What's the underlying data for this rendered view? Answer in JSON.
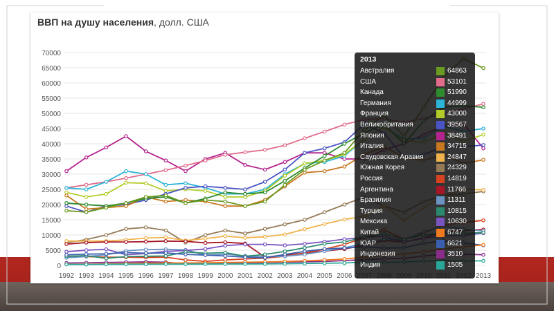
{
  "chart_data": {
    "type": "line",
    "title": "ВВП на душу населения",
    "title_unit": ", долл. США",
    "x": [
      "1992",
      "1993",
      "1994",
      "1995",
      "1996",
      "1997",
      "1998",
      "1999",
      "2000",
      "2001",
      "2002",
      "2003",
      "2004",
      "2005",
      "2006",
      "2007",
      "2008",
      "2009",
      "2010",
      "2011",
      "2012",
      "2013"
    ],
    "ylim": [
      0,
      70000
    ],
    "yticks": [
      "0",
      "5000",
      "10000",
      "15000",
      "20000",
      "25000",
      "30000",
      "35000",
      "40000",
      "45000",
      "50000",
      "55000",
      "60000",
      "65000",
      "70000"
    ],
    "grid": true,
    "tooltip": {
      "year": "2013",
      "rows": [
        {
          "name": "Австралия",
          "value": "64863",
          "color": "#6a9a1f"
        },
        {
          "name": "США",
          "value": "53101",
          "color": "#e06b8b"
        },
        {
          "name": "Канада",
          "value": "51990",
          "color": "#2e8b2e"
        },
        {
          "name": "Германия",
          "value": "44999",
          "color": "#2cb5d8"
        },
        {
          "name": "Франция",
          "value": "43000",
          "color": "#b3cc2a"
        },
        {
          "name": "Великобритания",
          "value": "39567",
          "color": "#4a54c4"
        },
        {
          "name": "Япония",
          "value": "38491",
          "color": "#b4238e"
        },
        {
          "name": "Италия",
          "value": "34715",
          "color": "#c8781e"
        },
        {
          "name": "Саудовская Аравия",
          "value": "24847",
          "color": "#f0b24a"
        },
        {
          "name": "Южная Корея",
          "value": "24329",
          "color": "#957a55"
        },
        {
          "name": "Россия",
          "value": "14819",
          "color": "#d8431f"
        },
        {
          "name": "Аргентина",
          "value": "11766",
          "color": "#a61626"
        },
        {
          "name": "Бразилия",
          "value": "11311",
          "color": "#6b93c4"
        },
        {
          "name": "Турция",
          "value": "10815",
          "color": "#2b8a6e"
        },
        {
          "name": "Мексика",
          "value": "10630",
          "color": "#7a55c0"
        },
        {
          "name": "Китай",
          "value": "6747",
          "color": "#f07a1e"
        },
        {
          "name": "ЮАР",
          "value": "6621",
          "color": "#3a5fb0"
        },
        {
          "name": "Индонезия",
          "value": "3510",
          "color": "#8a2c8a"
        },
        {
          "name": "Индия",
          "value": "1505",
          "color": "#29a89a"
        }
      ]
    },
    "series": [
      {
        "color": "#b4238e",
        "values": [
          31000,
          35500,
          38800,
          42500,
          37500,
          34500,
          31000,
          35000,
          37000,
          33000,
          31500,
          34000,
          37000,
          37000,
          35000,
          35000,
          38000,
          40000,
          43000,
          46000,
          46500,
          38491
        ]
      },
      {
        "color": "#e06b8b",
        "values": [
          25500,
          26500,
          27500,
          28700,
          30000,
          31300,
          32800,
          34500,
          36400,
          37200,
          38000,
          39500,
          41800,
          44000,
          46300,
          48000,
          48300,
          47000,
          48400,
          49800,
          51500,
          53101
        ]
      },
      {
        "color": "#2cb5d8",
        "values": [
          25500,
          25000,
          27500,
          31000,
          30000,
          26500,
          27000,
          25500,
          23500,
          23500,
          25000,
          30000,
          33500,
          34000,
          36000,
          41500,
          45500,
          41500,
          41800,
          45800,
          44000,
          44999
        ]
      },
      {
        "color": "#b3cc2a",
        "values": [
          24000,
          22500,
          23500,
          27200,
          27000,
          24500,
          25000,
          24500,
          22500,
          22500,
          24500,
          29500,
          33500,
          34500,
          36500,
          41500,
          45500,
          41000,
          40500,
          43500,
          40800,
          43000
        ]
      },
      {
        "color": "#4a54c4",
        "values": [
          19500,
          17500,
          19500,
          20000,
          21500,
          23500,
          25500,
          26000,
          25500,
          25000,
          27500,
          31500,
          37000,
          38500,
          40500,
          46500,
          43500,
          35500,
          36500,
          39000,
          39000,
          39567
        ]
      },
      {
        "color": "#c8781e",
        "values": [
          23000,
          18500,
          19000,
          19500,
          22500,
          21000,
          21500,
          21000,
          19500,
          19500,
          21500,
          26000,
          30500,
          31000,
          32500,
          36500,
          39000,
          35500,
          34500,
          36500,
          33500,
          34715
        ]
      },
      {
        "color": "#2e8b2e",
        "values": [
          20500,
          20000,
          19500,
          20500,
          22000,
          22500,
          20500,
          22000,
          24000,
          23500,
          24000,
          27800,
          32000,
          36000,
          40000,
          43500,
          46500,
          40000,
          47500,
          52000,
          52500,
          51990
        ]
      },
      {
        "color": "#6a9a1f",
        "values": [
          18000,
          17500,
          19000,
          20500,
          22500,
          23000,
          20500,
          21500,
          21000,
          19500,
          21000,
          26500,
          31500,
          34500,
          37000,
          44500,
          49500,
          42500,
          52000,
          62000,
          68000,
          64863
        ]
      },
      {
        "color": "#957a55",
        "values": [
          7500,
          8500,
          10000,
          12000,
          12500,
          11500,
          7500,
          10000,
          11500,
          10500,
          12000,
          13500,
          15000,
          17500,
          20000,
          22500,
          19500,
          17500,
          21000,
          23000,
          23500,
          24329
        ]
      },
      {
        "color": "#f0b24a",
        "values": [
          8000,
          8000,
          8000,
          8400,
          9000,
          9200,
          8200,
          8800,
          9600,
          9100,
          9400,
          10200,
          11900,
          13600,
          15100,
          16200,
          19500,
          14800,
          19000,
          23000,
          25000,
          24847
        ]
      },
      {
        "color": "#a61626",
        "values": [
          7000,
          7500,
          7700,
          7700,
          7800,
          8000,
          7900,
          7400,
          7600,
          7200,
          2700,
          3400,
          4000,
          4700,
          5400,
          6600,
          8200,
          7700,
          9100,
          10900,
          11500,
          11766
        ]
      },
      {
        "color": "#d8431f",
        "values": [
          3000,
          2900,
          2700,
          2700,
          2600,
          2700,
          1800,
          1300,
          1800,
          2100,
          2400,
          3000,
          4100,
          5300,
          6900,
          9100,
          11700,
          8600,
          10700,
          13300,
          14100,
          14819
        ]
      },
      {
        "color": "#6b93c4",
        "values": [
          2500,
          2900,
          3500,
          4800,
          5200,
          5300,
          5100,
          3400,
          3700,
          3100,
          2800,
          3000,
          3600,
          4700,
          5800,
          7200,
          8600,
          8400,
          11100,
          13000,
          11900,
          11311
        ]
      },
      {
        "color": "#7a55c0",
        "values": [
          4500,
          5000,
          5300,
          3500,
          3900,
          4600,
          4900,
          5400,
          6500,
          6900,
          6900,
          6600,
          7100,
          7800,
          8600,
          9200,
          9600,
          7700,
          8900,
          9700,
          9800,
          10630
        ]
      },
      {
        "color": "#2b8a6e",
        "values": [
          3000,
          3200,
          2300,
          2900,
          3000,
          3100,
          4400,
          4000,
          4200,
          3000,
          3600,
          4600,
          5800,
          7100,
          7700,
          9300,
          10400,
          8600,
          10000,
          10600,
          10500,
          10815
        ]
      },
      {
        "color": "#3a5fb0",
        "values": [
          3500,
          3700,
          3800,
          4200,
          4000,
          4100,
          3600,
          3400,
          3100,
          2700,
          2500,
          3600,
          4600,
          5400,
          5700,
          6100,
          5700,
          5800,
          7300,
          8000,
          7400,
          6621
        ]
      },
      {
        "color": "#8a2c8a",
        "values": [
          800,
          850,
          950,
          1050,
          1150,
          1050,
          480,
          700,
          800,
          780,
          930,
          1080,
          1160,
          1270,
          1590,
          1860,
          2170,
          2270,
          3100,
          3600,
          3650,
          3510
        ]
      },
      {
        "color": "#f07a1e",
        "values": [
          360,
          380,
          470,
          600,
          700,
          780,
          820,
          860,
          950,
          1040,
          1140,
          1280,
          1500,
          1750,
          2100,
          2700,
          3400,
          3800,
          4400,
          5400,
          6100,
          6747
        ]
      },
      {
        "color": "#29a89a",
        "values": [
          330,
          300,
          350,
          380,
          400,
          420,
          420,
          440,
          450,
          460,
          480,
          550,
          620,
          710,
          800,
          1050,
          1000,
          1100,
          1400,
          1500,
          1450,
          1505
        ]
      }
    ]
  }
}
